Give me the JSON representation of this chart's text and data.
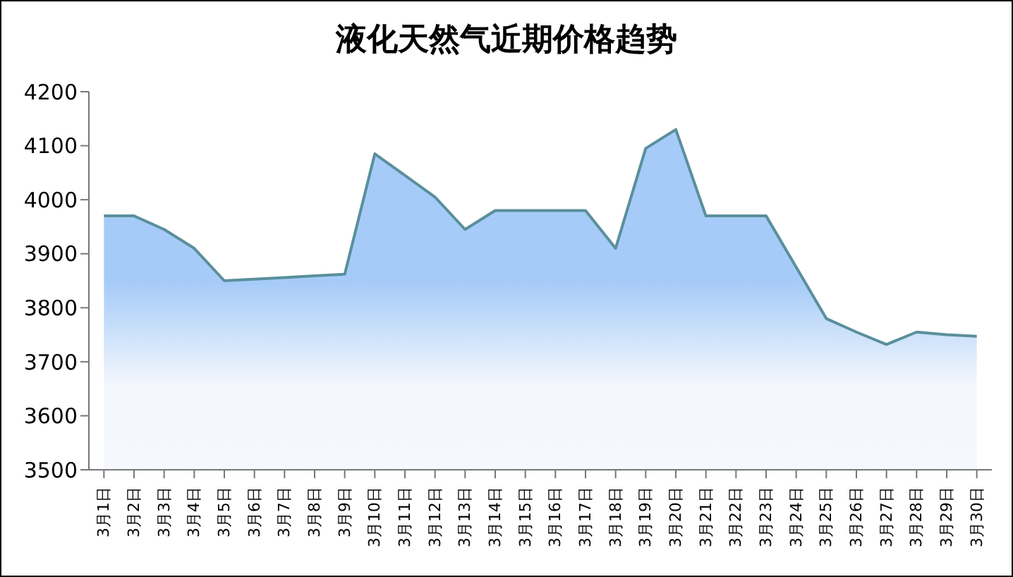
{
  "chart_data": {
    "type": "area",
    "title": "液化天然气近期价格趋势",
    "categories": [
      "3月1日",
      "3月2日",
      "3月3日",
      "3月4日",
      "3月5日",
      "3月6日",
      "3月7日",
      "3月8日",
      "3月9日",
      "3月10日",
      "3月11日",
      "3月12日",
      "3月13日",
      "3月14日",
      "3月15日",
      "3月16日",
      "3月17日",
      "3月18日",
      "3月19日",
      "3月20日",
      "3月21日",
      "3月22日",
      "3月23日",
      "3月24日",
      "3月25日",
      "3月26日",
      "3月27日",
      "3月28日",
      "3月29日",
      "3月30日"
    ],
    "series": [
      {
        "color": "#5a8f9c",
        "values": [
          3970,
          3970,
          3945,
          3910,
          3850,
          3853,
          3856,
          3859,
          3862,
          4085,
          4045,
          4005,
          3945,
          3980,
          3980,
          3980,
          3980,
          3910,
          4095,
          4130,
          3970,
          3970,
          3970,
          3875,
          3780,
          3755,
          3732,
          3755,
          3750,
          3747
        ]
      }
    ],
    "ylim": [
      3500,
      4200
    ],
    "yticks": [
      3500,
      3600,
      3700,
      3800,
      3900,
      4000,
      4100,
      4200
    ],
    "grid": false,
    "legend": false,
    "marker": "none"
  }
}
